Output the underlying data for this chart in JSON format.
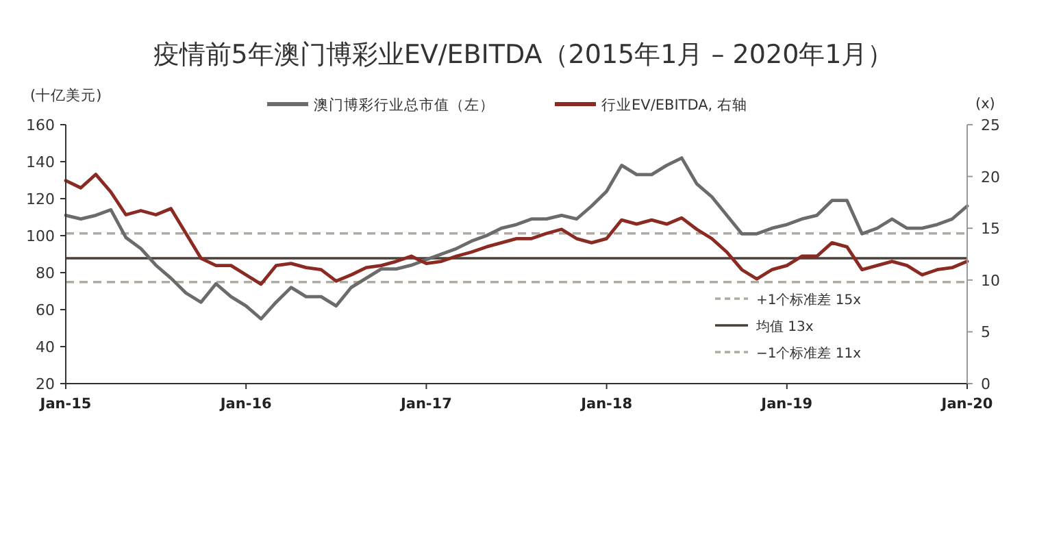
{
  "chart_data": {
    "type": "line",
    "title": "疫情前5年澳门博彩业EV/EBITDA（2015年1月 – 2020年1月）",
    "ylabel": "(十亿美元)",
    "y2label": "(x)",
    "x": [
      "2015-01",
      "2015-02",
      "2015-03",
      "2015-04",
      "2015-05",
      "2015-06",
      "2015-07",
      "2015-08",
      "2015-09",
      "2015-10",
      "2015-11",
      "2015-12",
      "2016-01",
      "2016-02",
      "2016-03",
      "2016-04",
      "2016-05",
      "2016-06",
      "2016-07",
      "2016-08",
      "2016-09",
      "2016-10",
      "2016-11",
      "2016-12",
      "2017-01",
      "2017-02",
      "2017-03",
      "2017-04",
      "2017-05",
      "2017-06",
      "2017-07",
      "2017-08",
      "2017-09",
      "2017-10",
      "2017-11",
      "2017-12",
      "2018-01",
      "2018-02",
      "2018-03",
      "2018-04",
      "2018-05",
      "2018-06",
      "2018-07",
      "2018-08",
      "2018-09",
      "2018-10",
      "2018-11",
      "2018-12",
      "2019-01",
      "2019-02",
      "2019-03",
      "2019-04",
      "2019-05",
      "2019-06",
      "2019-07",
      "2019-08",
      "2019-09",
      "2019-10",
      "2019-11",
      "2019-12",
      "2020-01"
    ],
    "series": [
      {
        "name": "澳门博彩行业总市值（左）",
        "color": "#6b6b6b",
        "values": [
          111,
          109,
          111,
          114,
          99,
          93,
          84,
          77,
          69,
          64,
          74,
          67,
          62,
          55,
          64,
          72,
          67,
          67,
          62,
          72,
          77,
          82,
          82,
          84,
          87,
          90,
          93,
          97,
          100,
          104,
          106,
          109,
          109,
          111,
          109,
          116,
          124,
          138,
          133,
          133,
          138,
          142,
          128,
          121,
          111,
          101,
          101,
          104,
          106,
          109,
          111,
          119,
          119,
          101,
          104,
          109,
          104,
          104,
          106,
          109,
          116
        ]
      },
      {
        "name": "行业EV/EBITDA, 右轴",
        "color": "#8b2a23",
        "axis": "y2",
        "values": [
          19.6,
          18.9,
          20.2,
          18.5,
          16.3,
          16.7,
          16.3,
          16.9,
          14.5,
          12.1,
          11.4,
          11.4,
          10.5,
          9.6,
          11.4,
          11.6,
          11.2,
          11.0,
          9.9,
          10.5,
          11.2,
          11.4,
          11.8,
          12.3,
          11.6,
          11.8,
          12.3,
          12.7,
          13.2,
          13.6,
          14.0,
          14.0,
          14.5,
          14.9,
          14.0,
          13.6,
          14.0,
          15.8,
          15.4,
          15.8,
          15.4,
          16.0,
          14.9,
          14.0,
          12.7,
          11.0,
          10.1,
          11.0,
          11.4,
          12.3,
          12.3,
          13.6,
          13.2,
          11.0,
          11.4,
          11.8,
          11.4,
          10.5,
          11.0,
          11.2,
          11.8
        ]
      }
    ],
    "xlim": [
      "2015-01",
      "2020-01"
    ],
    "xticks": [
      {
        "value": "2015-01",
        "label": "Jan-15"
      },
      {
        "value": "2016-01",
        "label": "Jan-16"
      },
      {
        "value": "2017-01",
        "label": "Jan-17"
      },
      {
        "value": "2018-01",
        "label": "Jan-18"
      },
      {
        "value": "2019-01",
        "label": "Jan-19"
      },
      {
        "value": "2020-01",
        "label": "Jan-20"
      }
    ],
    "ylim": [
      20,
      160
    ],
    "yticks": [
      20,
      40,
      60,
      80,
      100,
      120,
      140,
      160
    ],
    "y2lim": [
      0,
      25
    ],
    "y2ticks": [
      0,
      5,
      10,
      15,
      20,
      25
    ],
    "ref_lines": [
      {
        "axis": "y2",
        "value": 14.5,
        "label": "+1个标准差 15x",
        "color": "#b0aaa0",
        "line_style": "dashed"
      },
      {
        "axis": "y2",
        "value": 12.1,
        "label": "均值 13x",
        "color": "#4a4038",
        "line_style": "solid"
      },
      {
        "axis": "y2",
        "value": 9.8,
        "label": "−1个标准差 11x",
        "color": "#b0aaa0",
        "line_style": "dashed"
      }
    ],
    "legend": "top"
  }
}
